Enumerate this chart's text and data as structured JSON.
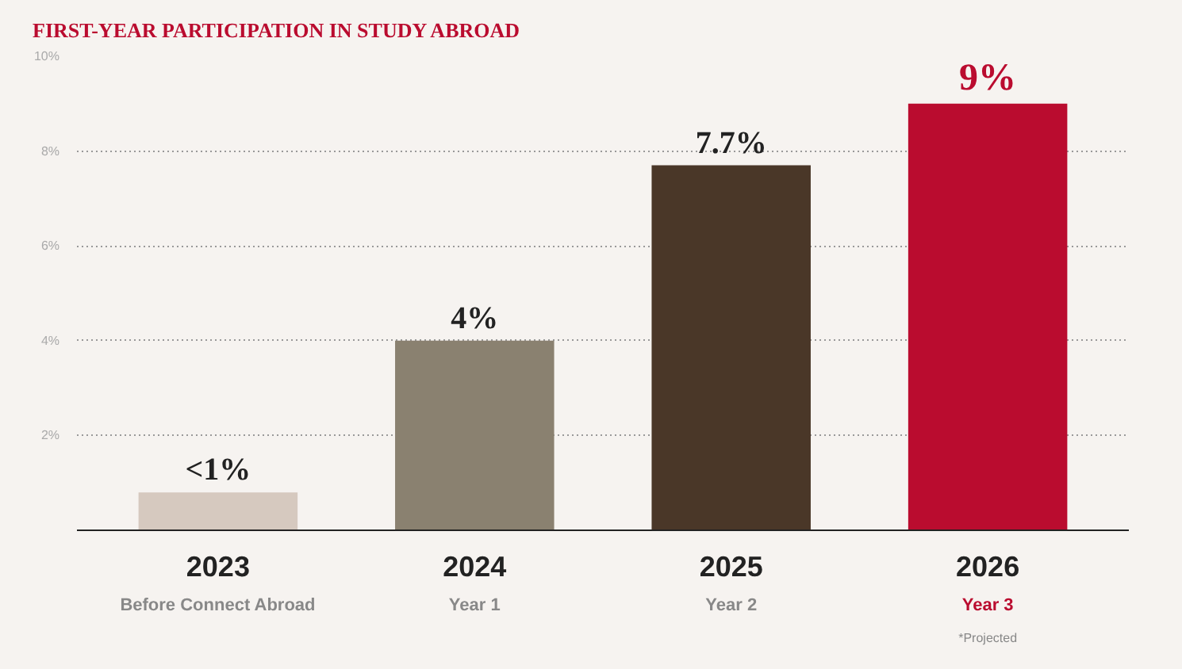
{
  "chart_data": {
    "type": "bar",
    "title": "FIRST-YEAR PARTICIPATION IN STUDY ABROAD",
    "categories": [
      "2023",
      "2024",
      "2025",
      "2026"
    ],
    "values": [
      0.8,
      4,
      7.7,
      9
    ],
    "colors": [
      "#d6c9bf",
      "#8a8170",
      "#4a3728",
      "#ba0c2f"
    ],
    "value_labels": [
      "<1%",
      "4%",
      "7.7%",
      "9%"
    ],
    "ylim": [
      0,
      10
    ],
    "yticks": [
      {
        "value": 2,
        "label": "2%"
      },
      {
        "value": 4,
        "label": "4%"
      },
      {
        "value": 6,
        "label": "6%"
      },
      {
        "value": 8,
        "label": "8%"
      },
      {
        "value": 10,
        "label": "10%"
      }
    ],
    "grid": "y",
    "annotations": [
      "Before Connect Abroad",
      "Year 1",
      "Year 2",
      "Year 3",
      "*Projected"
    ]
  }
}
